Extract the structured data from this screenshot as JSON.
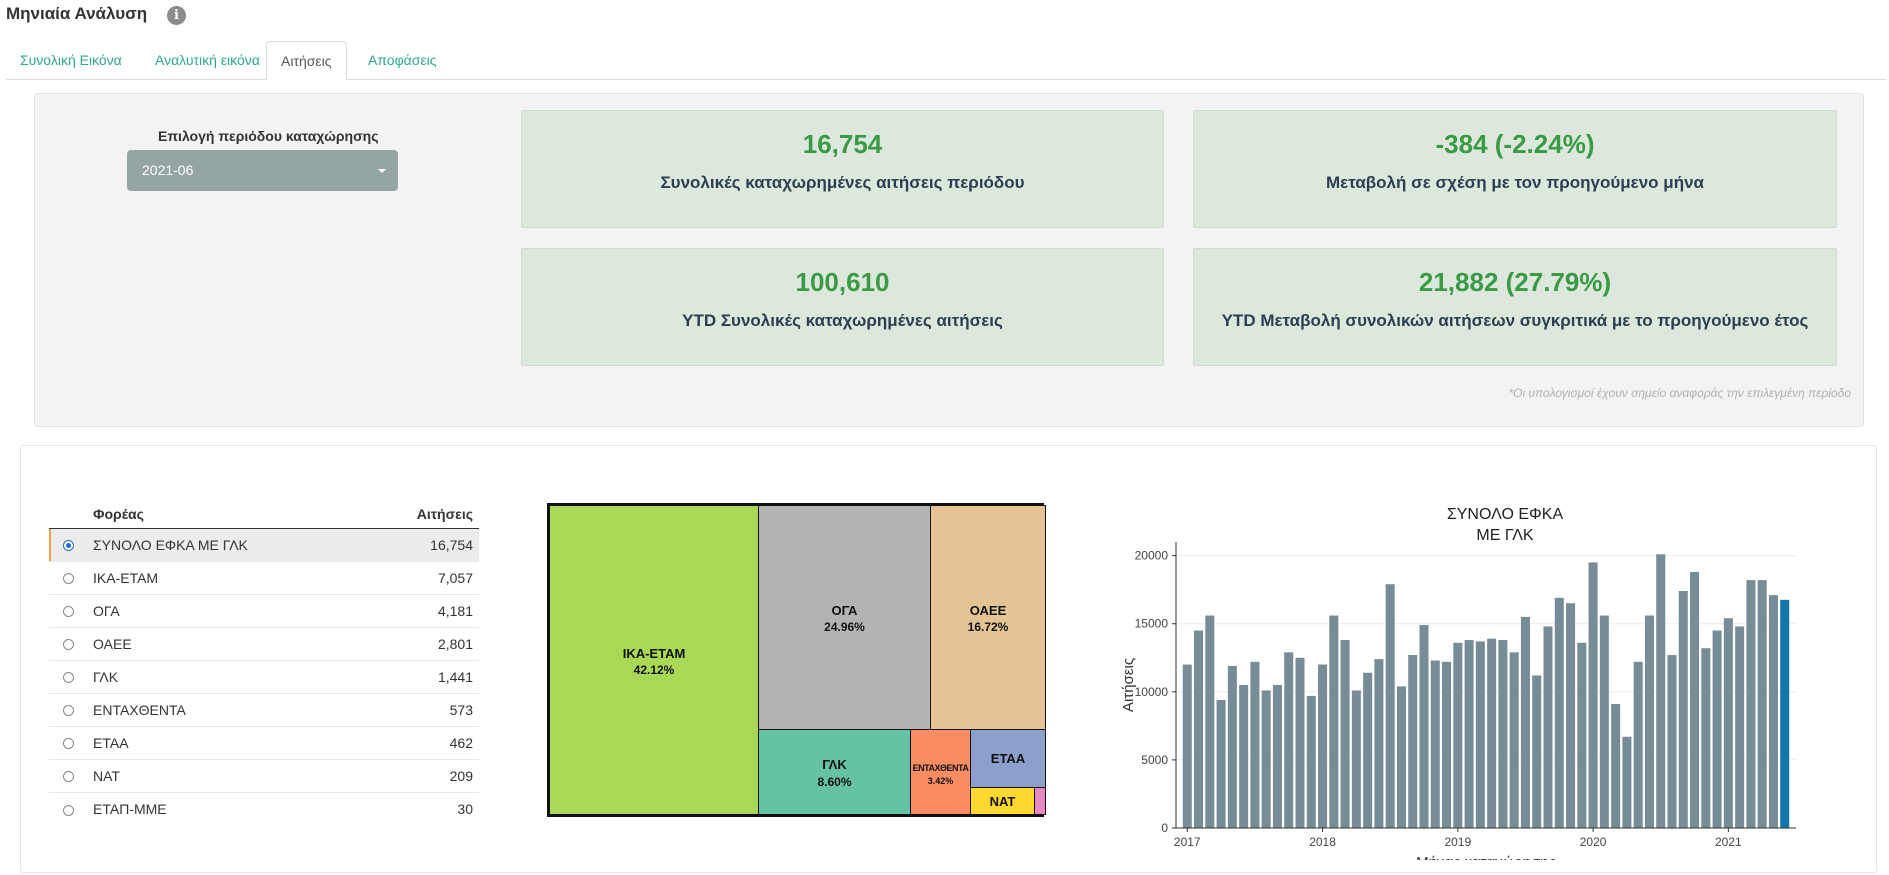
{
  "header": {
    "title": "Μηνιαία Ανάλυση",
    "info_icon": "i"
  },
  "tabs": [
    {
      "label": "Συνολική Εικόνα",
      "active": false
    },
    {
      "label": "Αναλυτική εικόνα",
      "active": false
    },
    {
      "label": "Αιτήσεις",
      "active": true
    },
    {
      "label": "Αποφάσεις",
      "active": false
    }
  ],
  "filters": {
    "period_label": "Επιλογή περιόδου καταχώρησης",
    "period_value": "2021-06"
  },
  "kpis": [
    {
      "value": "16,754",
      "label": "Συνολικές καταχωρημένες αιτήσεις περιόδου"
    },
    {
      "value": "-384 (-2.24%)",
      "label": "Μεταβολή σε σχέση με τον προηγούμενο μήνα"
    },
    {
      "value": "100,610",
      "label": "YTD Συνολικές καταχωρημένες αιτήσεις"
    },
    {
      "value": "21,882 (27.79%)",
      "label": "YTD Μεταβολή συνολικών αιτήσεων συγκριτικά με το προηγούμενο έτος"
    }
  ],
  "footnote": "*Οι υπολογισμοί έχουν σημείο αναφοράς την επιλεγμένη περίοδο",
  "table": {
    "headers": [
      "Φορέας",
      "Αιτήσεις"
    ],
    "rows": [
      {
        "name": "ΣΥΝΟΛΟ ΕΦΚΑ ΜΕ ΓΛΚ",
        "value": "16,754",
        "selected": true
      },
      {
        "name": "ΙΚΑ-ΕΤΑΜ",
        "value": "7,057",
        "selected": false
      },
      {
        "name": "ΟΓΑ",
        "value": "4,181",
        "selected": false
      },
      {
        "name": "ΟΑΕΕ",
        "value": "2,801",
        "selected": false
      },
      {
        "name": "ΓΛΚ",
        "value": "1,441",
        "selected": false
      },
      {
        "name": "ΕΝΤΑΧΘΕΝΤΑ",
        "value": "573",
        "selected": false
      },
      {
        "name": "ΕΤΑΑ",
        "value": "462",
        "selected": false
      },
      {
        "name": "ΝΑΤ",
        "value": "209",
        "selected": false
      },
      {
        "name": "ΕΤΑΠ-ΜΜΕ",
        "value": "30",
        "selected": false
      }
    ]
  },
  "treemap": [
    {
      "name": "ΙΚΑ-ΕΤΑΜ",
      "pct": "42.12%",
      "color": "#a8d854"
    },
    {
      "name": "ΟΓΑ",
      "pct": "24.96%",
      "color": "#b3b3b3"
    },
    {
      "name": "ΟΑΕΕ",
      "pct": "16.72%",
      "color": "#e5c494"
    },
    {
      "name": "ΓΛΚ",
      "pct": "8.60%",
      "color": "#66c2a5"
    },
    {
      "name": "ΕΝΤΑΧΘΕΝΤΑ",
      "pct": "3.42%",
      "color": "#fc8d62"
    },
    {
      "name": "ΕΤΑΑ",
      "pct": "",
      "color": "#8da0cb"
    },
    {
      "name": "ΝΑΤ",
      "pct": "",
      "color": "#ffd92f"
    },
    {
      "name": "",
      "pct": "",
      "color": "#e78ac3"
    }
  ],
  "chart_data": {
    "type": "bar",
    "title": [
      "ΣΥΝΟΛΟ ΕΦΚΑ",
      "ΜΕ ΓΛΚ"
    ],
    "xlabel": "Μήνας καταχώρησης",
    "ylabel": "Αιτήσεις",
    "ylim": [
      0,
      21000
    ],
    "yticks": [
      0,
      5000,
      10000,
      15000,
      20000
    ],
    "xticks": [
      "2017",
      "2018",
      "2019",
      "2020",
      "2021"
    ],
    "x_start": "2017-01",
    "x_end": "2021-06",
    "bar_color": "#778c96",
    "highlight_color": "#1276a8",
    "values": [
      12000,
      14500,
      15600,
      9400,
      11900,
      10500,
      12200,
      10100,
      10500,
      12900,
      12500,
      9700,
      12000,
      15600,
      13800,
      10100,
      11400,
      12400,
      17900,
      10400,
      12700,
      14900,
      12300,
      12200,
      13600,
      13800,
      13700,
      13900,
      13800,
      12900,
      15500,
      11200,
      14800,
      16900,
      16500,
      13600,
      19500,
      15600,
      9100,
      6700,
      12200,
      15600,
      20100,
      12700,
      17400,
      18800,
      13200,
      14500,
      15400,
      14800,
      18200,
      18200,
      17100,
      16754
    ]
  }
}
